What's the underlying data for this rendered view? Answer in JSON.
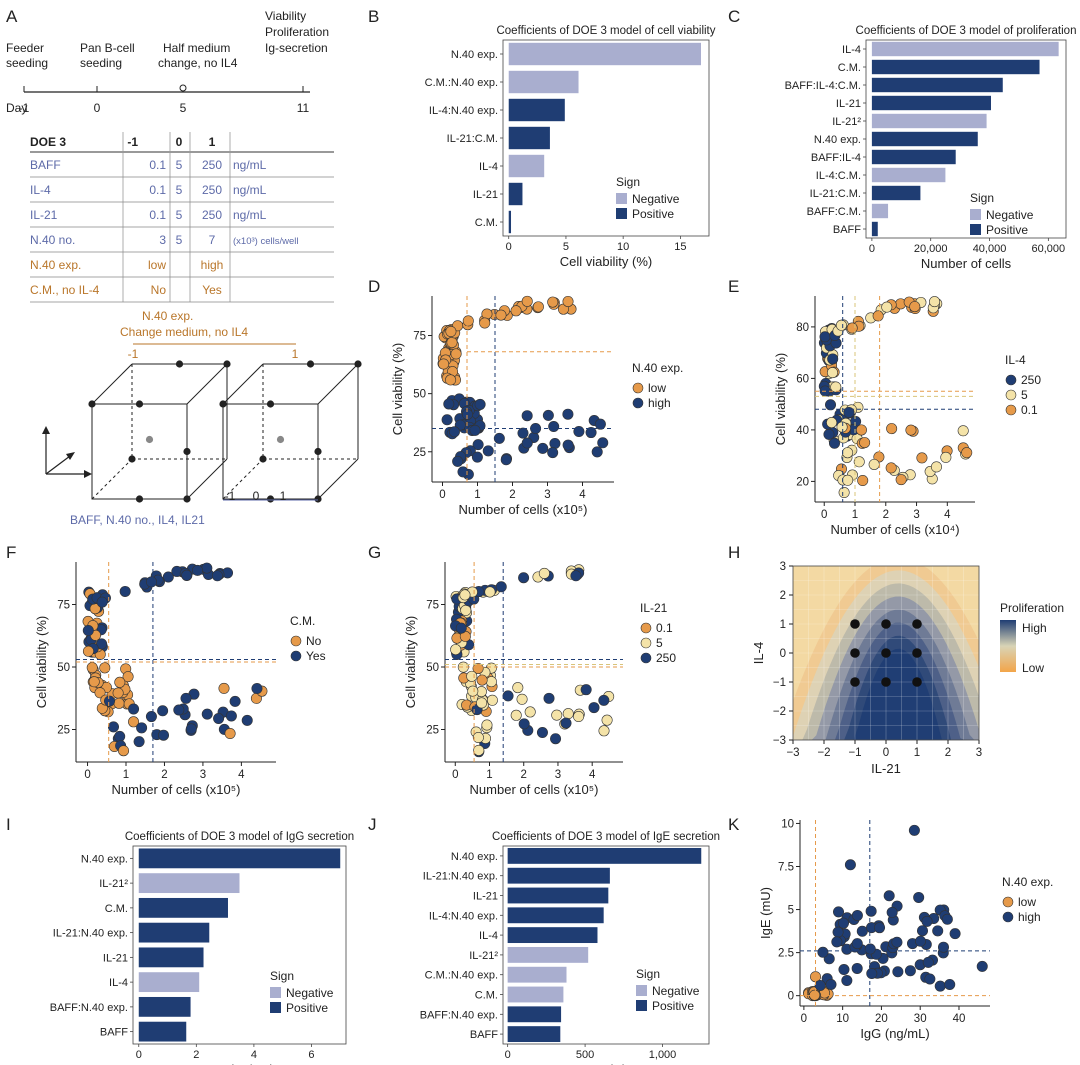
{
  "colors": {
    "neg": "#a9aecf",
    "pos": "#1f3d73",
    "orange": "#e69a4a",
    "cream": "#f4e3a8",
    "navy": "#1f3d73",
    "blueText": "#5d6aa8",
    "orangeText": "#b9762a",
    "axis": "#222222",
    "grid": "#e6e6e6"
  },
  "panel_letters": [
    "A",
    "B",
    "C",
    "D",
    "E",
    "F",
    "G",
    "H",
    "I",
    "J",
    "K"
  ],
  "panelA": {
    "timeline_labels": [
      {
        "l1": "Feeder",
        "l2": "seeding"
      },
      {
        "l1": "Pan B-cell",
        "l2": "seeding"
      },
      {
        "l1": "Half medium",
        "l2": "change, no IL4"
      },
      {
        "l1": "Viability",
        "l2": "Proliferation",
        "l3": "Ig-secretion"
      }
    ],
    "day_label": "Day",
    "days": [
      "-1",
      "0",
      "5",
      "11"
    ],
    "table_header": [
      "DOE 3",
      "-1",
      "0",
      "1"
    ],
    "table_rows": [
      {
        "name": "BAFF",
        "lo": "0.1",
        "mid": "5",
        "hi": "250",
        "unit": "ng/mL",
        "kind": "blue"
      },
      {
        "name": "IL-4",
        "lo": "0.1",
        "mid": "5",
        "hi": "250",
        "unit": "ng/mL",
        "kind": "blue"
      },
      {
        "name": "IL-21",
        "lo": "0.1",
        "mid": "5",
        "hi": "250",
        "unit": "ng/mL",
        "kind": "blue"
      },
      {
        "name": "N.40 no.",
        "lo": "3",
        "mid": "5",
        "hi": "7",
        "unit": "(x10³) cells/well",
        "kind": "blue"
      },
      {
        "name": "N.40 exp.",
        "lo": "low",
        "mid": "",
        "hi": "high",
        "unit": "",
        "kind": "orange"
      },
      {
        "name": "C.M., no IL-4",
        "lo": "No",
        "mid": "",
        "hi": "Yes",
        "unit": "",
        "kind": "orange"
      }
    ],
    "cube_top1": "N.40 exp.",
    "cube_top2": "Change medium, no IL4",
    "cube_lo": "-1",
    "cube_hi": "1",
    "cube_axis_ticks": [
      "-1",
      "0",
      "1"
    ],
    "cube_bottom": "BAFF, N.40 no., IL4, IL21"
  },
  "chart_data": [
    {
      "id": "B",
      "type": "bar",
      "title": "Coefficients of DOE 3 model of cell viability",
      "xlabel": "Cell viability (%)",
      "xlim": [
        -0.5,
        17.5
      ],
      "xticks": [
        0,
        5,
        10,
        15
      ],
      "categories": [
        "N.40 exp.",
        "C.M.:N.40 exp.",
        "IL-4:N.40 exp.",
        "IL-21:C.M.",
        "IL-4",
        "IL-21",
        "C.M."
      ],
      "values": [
        16.8,
        6.1,
        4.9,
        3.6,
        3.1,
        1.2,
        0.2
      ],
      "signs": [
        "neg",
        "neg",
        "pos",
        "pos",
        "neg",
        "pos",
        "pos"
      ],
      "legend_title": "Sign",
      "legend": [
        "Negative",
        "Positive"
      ]
    },
    {
      "id": "C",
      "type": "bar",
      "title": "Coefficients of DOE 3 model of proliferation",
      "xlabel": "Number of cells",
      "xlim": [
        -2000,
        66000
      ],
      "xticks": [
        0,
        20000,
        40000,
        60000
      ],
      "xtick_labels": [
        "0",
        "20,000",
        "40,000",
        "60,000"
      ],
      "categories": [
        "IL-4",
        "C.M.",
        "BAFF:IL-4:C.M.",
        "IL-21",
        "IL-21²",
        "N.40 exp.",
        "BAFF:IL-4",
        "IL-4:C.M.",
        "IL-21:C.M.",
        "BAFF:C.M.",
        "BAFF"
      ],
      "values": [
        63500,
        57000,
        44500,
        40500,
        39000,
        36000,
        28500,
        25000,
        16500,
        5500,
        2000
      ],
      "signs": [
        "neg",
        "pos",
        "pos",
        "pos",
        "neg",
        "pos",
        "pos",
        "neg",
        "pos",
        "neg",
        "pos"
      ],
      "legend_title": "Sign",
      "legend": [
        "Negative",
        "Positive"
      ]
    },
    {
      "id": "D",
      "type": "scatter",
      "xlabel": "Number of cells (x10⁵)",
      "ylabel": "Cell viability (%)",
      "xlim": [
        -0.3,
        4.9
      ],
      "ylim": [
        12,
        92
      ],
      "xticks": [
        0,
        1,
        2,
        3,
        4
      ],
      "yticks": [
        25,
        50,
        75
      ],
      "legend_title": "N.40 exp.",
      "series": [
        {
          "name": "low",
          "color": "orange"
        },
        {
          "name": "high",
          "color": "navy"
        }
      ],
      "refs": {
        "v_orange": 0.7,
        "v_navy": 1.5,
        "h_orange": 68,
        "h_navy": 35
      }
    },
    {
      "id": "E",
      "type": "scatter",
      "xlabel": "Number of cells (x10⁴)",
      "ylabel": "Cell viability (%)",
      "xlim": [
        -0.3,
        4.9
      ],
      "ylim": [
        12,
        92
      ],
      "xticks": [
        0,
        1,
        2,
        3,
        4
      ],
      "yticks": [
        20,
        40,
        60,
        80
      ],
      "legend_title": "IL-4",
      "series": [
        {
          "name": "250",
          "color": "navy"
        },
        {
          "name": "5",
          "color": "cream"
        },
        {
          "name": "0.1",
          "color": "orange"
        }
      ],
      "refs": {
        "v_navy": 0.6,
        "v_orange": 1.8,
        "v_cream": 1.0,
        "h_orange": 55,
        "h_cream": 53,
        "h_navy": 48
      }
    },
    {
      "id": "F",
      "type": "scatter",
      "xlabel": "Number of cells (x10⁵)",
      "ylabel": "Cell viability (%)",
      "xlim": [
        -0.3,
        4.9
      ],
      "ylim": [
        12,
        92
      ],
      "xticks": [
        0,
        1,
        2,
        3,
        4
      ],
      "yticks": [
        25,
        50,
        75
      ],
      "legend_title": "C.M.",
      "series": [
        {
          "name": "No",
          "color": "orange"
        },
        {
          "name": "Yes",
          "color": "navy"
        }
      ],
      "refs": {
        "v_orange": 0.55,
        "v_navy": 1.7,
        "h_orange": 52,
        "h_navy": 53
      }
    },
    {
      "id": "G",
      "type": "scatter",
      "xlabel": "Number of cells (x10⁵)",
      "ylabel": "Cell viability (%)",
      "xlim": [
        -0.3,
        4.9
      ],
      "ylim": [
        12,
        92
      ],
      "xticks": [
        0,
        1,
        2,
        3,
        4
      ],
      "yticks": [
        25,
        50,
        75
      ],
      "legend_title": "IL-21",
      "series": [
        {
          "name": "0.1",
          "color": "orange"
        },
        {
          "name": "5",
          "color": "cream"
        },
        {
          "name": "250",
          "color": "navy"
        }
      ],
      "refs": {
        "v_orange": 0.55,
        "v_navy": 1.4,
        "h_orange": 50,
        "h_cream": 51,
        "h_navy": 53
      }
    },
    {
      "id": "H",
      "type": "heatmap",
      "xlabel": "IL-21",
      "ylabel": "IL-4",
      "xlim": [
        -3,
        3
      ],
      "ylim": [
        -3,
        3
      ],
      "xticks": [
        -3,
        -2,
        -1,
        0,
        1,
        2,
        3
      ],
      "yticks": [
        -3,
        -2,
        -1,
        0,
        1,
        2,
        3
      ],
      "legend_title": "Proliferation",
      "legend_high": "High",
      "legend_low": "Low",
      "design_points": [
        [
          -1,
          1
        ],
        [
          0,
          1
        ],
        [
          1,
          1
        ],
        [
          -1,
          0
        ],
        [
          0,
          0
        ],
        [
          1,
          0
        ],
        [
          -1,
          -1
        ],
        [
          0,
          -1
        ],
        [
          1,
          -1
        ]
      ]
    },
    {
      "id": "I",
      "type": "bar",
      "title": "Coefficients of DOE 3 model of IgG secretion",
      "xlabel": "IgG (ng/mL)",
      "xlim": [
        -0.2,
        7.2
      ],
      "xticks": [
        0,
        2,
        4,
        6
      ],
      "categories": [
        "N.40 exp.",
        "IL-21²",
        "C.M.",
        "IL-21:N.40 exp.",
        "IL-21",
        "IL-4",
        "BAFF:N.40 exp.",
        "BAFF"
      ],
      "values": [
        7.0,
        3.5,
        3.1,
        2.45,
        2.25,
        2.1,
        1.8,
        1.65
      ],
      "signs": [
        "pos",
        "neg",
        "pos",
        "pos",
        "pos",
        "neg",
        "pos",
        "pos"
      ],
      "legend_title": "Sign",
      "legend": [
        "Negative",
        "Positive"
      ]
    },
    {
      "id": "J",
      "type": "bar",
      "title": "Coefficients of DOE 3 model of IgE secretion",
      "xlabel": "IgE (U)",
      "xlim": [
        -30,
        1300
      ],
      "xticks": [
        0,
        500,
        1000
      ],
      "xtick_labels": [
        "0",
        "500",
        "1,000"
      ],
      "categories": [
        "N.40 exp.",
        "IL-21:N.40 exp.",
        "IL-21",
        "IL-4:N.40 exp.",
        "IL-4",
        "IL-21²",
        "C.M.:N.40 exp.",
        "C.M.",
        "BAFF:N.40 exp.",
        "BAFF"
      ],
      "values": [
        1250,
        660,
        650,
        620,
        580,
        520,
        380,
        360,
        345,
        340
      ],
      "signs": [
        "pos",
        "pos",
        "pos",
        "pos",
        "pos",
        "neg",
        "neg",
        "neg",
        "pos",
        "pos"
      ],
      "legend_title": "Sign",
      "legend": [
        "Negative",
        "Positive"
      ]
    },
    {
      "id": "K",
      "type": "scatter",
      "xlabel": "IgG (ng/mL)",
      "ylabel": "IgE (mU)",
      "xlim": [
        -1,
        48
      ],
      "ylim": [
        -0.6,
        10.2
      ],
      "xticks": [
        0,
        10,
        20,
        30,
        40
      ],
      "yticks": [
        0,
        2.5,
        5,
        7.5,
        10
      ],
      "ytick_labels": [
        "0",
        "2.5",
        "5",
        "7.5",
        "10"
      ],
      "legend_title": "N.40 exp.",
      "series": [
        {
          "name": "low",
          "color": "orange"
        },
        {
          "name": "high",
          "color": "navy"
        }
      ],
      "refs": {
        "v_orange": 3.0,
        "v_navy": 17.0,
        "h_orange": 0.0,
        "h_navy": 2.6
      }
    }
  ]
}
